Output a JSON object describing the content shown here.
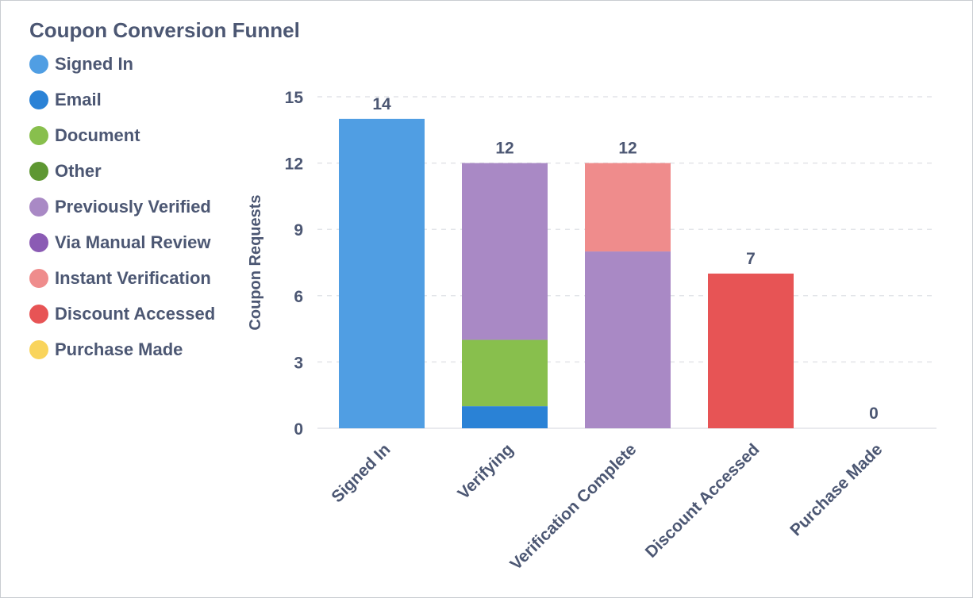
{
  "chart_data": {
    "type": "bar",
    "stacked": true,
    "title": "Coupon Conversion Funnel",
    "ylabel": "Coupon Requests",
    "xlabel": "",
    "ylim": [
      0,
      15
    ],
    "yticks": [
      0,
      3,
      6,
      9,
      12,
      15
    ],
    "grid": true,
    "legend_position": "left",
    "categories": [
      "Signed In",
      "Verifying",
      "Verification Complete",
      "Discount Accessed",
      "Purchase Made"
    ],
    "series": [
      {
        "name": "Signed In",
        "color": "#509ee3",
        "values": [
          14,
          0,
          0,
          0,
          0
        ]
      },
      {
        "name": "Email",
        "color": "#2a82d6",
        "values": [
          0,
          1,
          0,
          0,
          0
        ]
      },
      {
        "name": "Document",
        "color": "#88bf4d",
        "values": [
          0,
          3,
          0,
          0,
          0
        ]
      },
      {
        "name": "Other",
        "color": "#5e9732",
        "values": [
          0,
          0,
          0,
          0,
          0
        ]
      },
      {
        "name": "Previously Verified",
        "color": "#a989c5",
        "values": [
          0,
          8,
          8,
          0,
          0
        ]
      },
      {
        "name": "Via Manual Review",
        "color": "#8b5bb4",
        "values": [
          0,
          0,
          0,
          0,
          0
        ]
      },
      {
        "name": "Instant Verification",
        "color": "#ef8c8c",
        "values": [
          0,
          0,
          4,
          0,
          0
        ]
      },
      {
        "name": "Discount Accessed",
        "color": "#e75455",
        "values": [
          0,
          0,
          0,
          7,
          0
        ]
      },
      {
        "name": "Purchase Made",
        "color": "#f9d45c",
        "values": [
          0,
          0,
          0,
          0,
          0
        ]
      }
    ],
    "totals": [
      "14",
      "12",
      "12",
      "7",
      "0"
    ]
  }
}
